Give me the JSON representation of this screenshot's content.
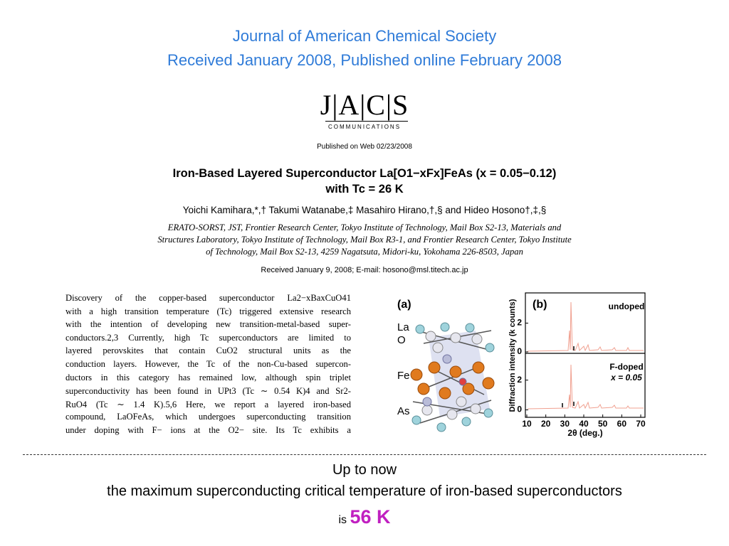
{
  "header": {
    "journal": "Journal of American Chemical Society",
    "dates": "Received January 2008, Published online February 2008"
  },
  "paper": {
    "logo": "J|A|C|S",
    "logo_sub": "COMMUNICATIONS",
    "published": "Published on Web 02/23/2008",
    "title": [
      "Iron-Based Layered Superconductor La[O1−xFx]FeAs (x = 0.05−0.12)",
      "with Tc = 26 K"
    ],
    "authors": "Yoichi Kamihara,*,† Takumi Watanabe,‡ Masahiro Hirano,†,§ and Hideo Hosono†,‡,§",
    "affiliation": [
      "ERATO-SORST, JST, Frontier Research Center, Tokyo Institute of Technology, Mail Box S2-13, Materials and",
      "Structures Laboratory, Tokyo Institute of Technology, Mail Box R3-1, and Frontier Research Center, Tokyo Institute",
      "of Technology, Mail Box S2-13, 4259 Nagatsuta, Midori-ku, Yokohama 226-8503, Japan"
    ],
    "received": "Received January 9, 2008;  E-mail: hosono@msl.titech.ac.jp",
    "body": [
      "Discovery of the copper-based superconductor La2−xBaxCuO41",
      "with a high transition temperature (Tc) triggered extensive research",
      "with the intention of developing new transition-metal-based super-",
      "conductors.2,3 Currently, high Tc superconductors are limited to",
      "layered perovskites that contain CuO2 structural units as the",
      "conduction layers. However, the Tc of the non-Cu-based supercon-",
      "ductors in this category has remained low, although spin triplet",
      "superconductivity has been found in UPt3 (Tc ∼ 0.54 K)4 and Sr2-",
      "RuO4 (Tc ∼ 1.4 K).5,6 Here, we report a layered iron-based",
      "compound, LaOFeAs, which undergoes superconducting transition",
      "under doping with F− ions at the O2− site. Its Tc exhibits a"
    ]
  },
  "figure": {
    "panel_a": {
      "label": "(a)",
      "atoms": [
        "La",
        "O",
        "Fe",
        "As"
      ]
    },
    "panel_b": {
      "label": "(b)",
      "y_label": "Diffraction intensity (k counts)",
      "x_label": "2θ (deg.)",
      "xlim": [
        10,
        70
      ],
      "xticks": [
        10,
        20,
        30,
        40,
        50,
        60,
        70
      ],
      "subpanels": [
        {
          "annotation": [
            "undoped"
          ],
          "ylim": [
            -0.1,
            4.1
          ],
          "yticks": [
            0,
            2
          ]
        },
        {
          "annotation": [
            "F-doped",
            "x = 0.05"
          ],
          "ylim": [
            -0.5,
            3.8
          ],
          "yticks": [
            0,
            2
          ]
        }
      ]
    }
  },
  "footer": {
    "line1": "Up to now",
    "line2": "the maximum superconducting critical temperature of iron-based superconductors",
    "prefix": "is",
    "highlight": "56 K"
  }
}
